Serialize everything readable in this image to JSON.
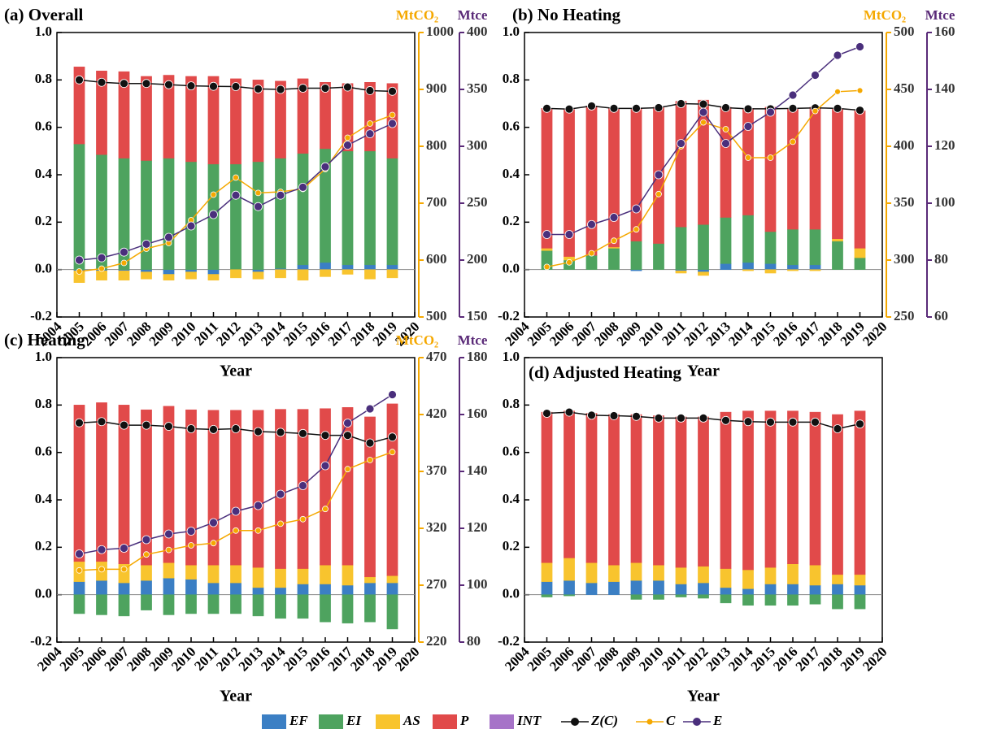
{
  "chart_data": [
    {
      "type": "bar",
      "title": "(a) Overall",
      "xlabel": "Year",
      "x": [
        2005,
        2006,
        2007,
        2008,
        2009,
        2010,
        2011,
        2012,
        2013,
        2014,
        2015,
        2016,
        2017,
        2018,
        2019
      ],
      "xlim": [
        2004,
        2020
      ],
      "xticks": [
        2004,
        2005,
        2006,
        2007,
        2008,
        2009,
        2010,
        2011,
        2012,
        2013,
        2014,
        2015,
        2016,
        2017,
        2018,
        2019,
        2020
      ],
      "ylim": [
        -0.2,
        1.0
      ],
      "yticks": [
        -0.2,
        {
          "value": 0,
          "label": "0.0"
        },
        0.2,
        0.4,
        0.6,
        0.8,
        {
          "value": 1,
          "label": "1.0"
        }
      ],
      "y2label": "MtCO₂",
      "y2lim": [
        500,
        1000
      ],
      "y2ticks": [
        500,
        600,
        700,
        800,
        900,
        1000
      ],
      "y3label": "Mtce",
      "y3lim": [
        150,
        400
      ],
      "y3ticks": [
        150,
        200,
        250,
        300,
        350,
        400
      ],
      "series": [
        {
          "name": "EF",
          "color": "#3b7fc4",
          "values": [
            -0.005,
            -0.005,
            -0.005,
            -0.01,
            -0.02,
            -0.01,
            -0.02,
            0,
            -0.01,
            0.005,
            0.02,
            0.03,
            0.02,
            0.02,
            0.02
          ]
        },
        {
          "name": "EI",
          "color": "#4ea35f",
          "values": [
            0.53,
            0.485,
            0.47,
            0.46,
            0.47,
            0.455,
            0.445,
            0.445,
            0.455,
            0.465,
            0.47,
            0.48,
            0.48,
            0.48,
            0.45
          ]
        },
        {
          "name": "AS",
          "color": "#f8c42e",
          "values": [
            -0.05,
            -0.04,
            -0.04,
            -0.03,
            -0.025,
            -0.03,
            -0.025,
            -0.035,
            -0.03,
            -0.035,
            -0.045,
            -0.03,
            -0.02,
            -0.04,
            -0.035
          ]
        },
        {
          "name": "P",
          "color": "#e14a4a",
          "values": [
            0.325,
            0.353,
            0.365,
            0.355,
            0.35,
            0.36,
            0.37,
            0.36,
            0.345,
            0.325,
            0.315,
            0.28,
            0.285,
            0.29,
            0.315
          ]
        },
        {
          "name": "INT",
          "color": "#a673c8",
          "values": [
            0,
            0,
            0,
            0,
            0,
            0,
            0,
            0,
            0,
            0,
            0,
            0,
            0,
            0,
            0
          ]
        },
        {
          "name": "Z(C)",
          "type": "line",
          "color": "#111111",
          "values": [
            0.8,
            0.79,
            0.785,
            0.785,
            0.78,
            0.775,
            0.773,
            0.772,
            0.762,
            0.76,
            0.765,
            0.765,
            0.77,
            0.755,
            0.752
          ]
        },
        {
          "name": "C",
          "type": "line",
          "axis": "y2",
          "color": "#f5a800",
          "values": [
            580,
            585,
            595,
            620,
            630,
            670,
            715,
            745,
            718,
            720,
            725,
            760,
            815,
            840,
            855
          ]
        },
        {
          "name": "E",
          "type": "line",
          "axis": "y3",
          "color": "#4a2f7c",
          "values": [
            200,
            202,
            207,
            214,
            220,
            230,
            240,
            257,
            247,
            257,
            264,
            282,
            301,
            311,
            320
          ]
        }
      ]
    },
    {
      "type": "bar",
      "title": "(b) No Heating",
      "xlabel": "Year",
      "x": [
        2005,
        2006,
        2007,
        2008,
        2009,
        2010,
        2011,
        2012,
        2013,
        2014,
        2015,
        2016,
        2017,
        2018,
        2019
      ],
      "xlim": [
        2004,
        2020
      ],
      "xticks": [
        2004,
        2005,
        2006,
        2007,
        2008,
        2009,
        2010,
        2011,
        2012,
        2013,
        2014,
        2015,
        2016,
        2017,
        2018,
        2019,
        2020
      ],
      "ylim": [
        -0.2,
        1.0
      ],
      "yticks": [
        -0.2,
        {
          "value": 0,
          "label": "0.0"
        },
        0.2,
        0.4,
        0.6,
        0.8,
        {
          "value": 1,
          "label": "1.0"
        }
      ],
      "y2label": "MtCO₂",
      "y2lim": [
        250,
        500
      ],
      "y2ticks": [
        250,
        300,
        350,
        400,
        450,
        500
      ],
      "y3label": "Mtce",
      "y3lim": [
        60,
        160
      ],
      "y3ticks": [
        60,
        80,
        100,
        120,
        140,
        160
      ],
      "series": [
        {
          "name": "EF",
          "color": "#3b7fc4",
          "values": [
            0,
            0,
            0,
            0,
            -0.005,
            0,
            -0.005,
            -0.01,
            0.025,
            0.03,
            0.025,
            0.02,
            0.02,
            0,
            0
          ]
        },
        {
          "name": "EI",
          "color": "#4ea35f",
          "values": [
            0.08,
            0.04,
            0.06,
            0.09,
            0.12,
            0.11,
            0.18,
            0.19,
            0.195,
            0.2,
            0.135,
            0.15,
            0.15,
            0.12,
            0.05
          ]
        },
        {
          "name": "AS",
          "color": "#f8c42e",
          "values": [
            0.01,
            0.015,
            0,
            0.005,
            0,
            0,
            -0.01,
            -0.015,
            0,
            -0.005,
            -0.015,
            -0.005,
            -0.005,
            0.01,
            0.04
          ]
        },
        {
          "name": "P",
          "color": "#e14a4a",
          "values": [
            0.59,
            0.62,
            0.63,
            0.585,
            0.56,
            0.575,
            0.53,
            0.525,
            0.465,
            0.45,
            0.525,
            0.51,
            0.515,
            0.55,
            0.58
          ]
        },
        {
          "name": "INT",
          "color": "#a673c8",
          "values": [
            0,
            0,
            0,
            0,
            0,
            0,
            0,
            0,
            0,
            0,
            0,
            0,
            0,
            0,
            0
          ]
        },
        {
          "name": "Z(C)",
          "type": "line",
          "color": "#111111",
          "values": [
            0.68,
            0.677,
            0.69,
            0.68,
            0.68,
            0.683,
            0.7,
            0.698,
            0.683,
            0.678,
            0.678,
            0.68,
            0.682,
            0.68,
            0.672
          ]
        },
        {
          "name": "C",
          "type": "line",
          "axis": "y2",
          "color": "#f5a800",
          "values": [
            294,
            298,
            306,
            317,
            327,
            358,
            400,
            421,
            415,
            390,
            390,
            404,
            431,
            448,
            449
          ]
        },
        {
          "name": "E",
          "type": "line",
          "axis": "y3",
          "color": "#4a2f7c",
          "values": [
            89,
            89,
            92.5,
            95,
            98,
            110,
            121,
            132,
            121,
            127,
            132,
            138,
            145,
            152,
            155
          ]
        }
      ]
    },
    {
      "type": "bar",
      "title": "(c) Heating",
      "xlabel": "Year",
      "x": [
        2005,
        2006,
        2007,
        2008,
        2009,
        2010,
        2011,
        2012,
        2013,
        2014,
        2015,
        2016,
        2017,
        2018,
        2019
      ],
      "xlim": [
        2004,
        2020
      ],
      "xticks": [
        2004,
        2005,
        2006,
        2007,
        2008,
        2009,
        2010,
        2011,
        2012,
        2013,
        2014,
        2015,
        2016,
        2017,
        2018,
        2019,
        2020
      ],
      "ylim": [
        -0.2,
        1.0
      ],
      "yticks": [
        -0.2,
        {
          "value": 0,
          "label": "0.0"
        },
        0.2,
        0.4,
        0.6,
        0.8,
        {
          "value": 1,
          "label": "1.0"
        }
      ],
      "y2label": "MtCO₂",
      "y2lim": [
        220,
        470
      ],
      "y2ticks": [
        220,
        270,
        320,
        370,
        420,
        470
      ],
      "y3label": "Mtce",
      "y3lim": [
        80,
        180
      ],
      "y3ticks": [
        80,
        100,
        120,
        140,
        160,
        180
      ],
      "series": [
        {
          "name": "EF",
          "color": "#3b7fc4",
          "values": [
            0.055,
            0.06,
            0.05,
            0.06,
            0.07,
            0.065,
            0.05,
            0.05,
            0.03,
            0.03,
            0.045,
            0.045,
            0.04,
            0.05,
            0.05
          ]
        },
        {
          "name": "EI",
          "color": "#4ea35f",
          "values": [
            -0.08,
            -0.085,
            -0.09,
            -0.065,
            -0.085,
            -0.08,
            -0.08,
            -0.08,
            -0.09,
            -0.1,
            -0.1,
            -0.115,
            -0.12,
            -0.115,
            -0.145
          ]
        },
        {
          "name": "AS",
          "color": "#f8c42e",
          "values": [
            0.085,
            0.08,
            0.08,
            0.065,
            0.065,
            0.06,
            0.075,
            0.075,
            0.085,
            0.08,
            0.065,
            0.08,
            0.085,
            0.025,
            0.03
          ]
        },
        {
          "name": "P",
          "color": "#e14a4a",
          "values": [
            0.66,
            0.67,
            0.67,
            0.655,
            0.66,
            0.655,
            0.653,
            0.653,
            0.663,
            0.672,
            0.672,
            0.66,
            0.665,
            0.675,
            0.725
          ]
        },
        {
          "name": "INT",
          "color": "#a673c8",
          "values": [
            0,
            0,
            0,
            0,
            0,
            0,
            0,
            0,
            0,
            0,
            0,
            0,
            0,
            0,
            0
          ]
        },
        {
          "name": "Z(C)",
          "type": "line",
          "color": "#111111",
          "values": [
            0.725,
            0.73,
            0.715,
            0.715,
            0.71,
            0.7,
            0.697,
            0.7,
            0.688,
            0.685,
            0.68,
            0.672,
            0.672,
            0.64,
            0.665
          ]
        },
        {
          "name": "C",
          "type": "line",
          "axis": "y2",
          "color": "#f5a800",
          "values": [
            283,
            284,
            284,
            297,
            301,
            305,
            307,
            318,
            318,
            324,
            328,
            337,
            372,
            380,
            387
          ]
        },
        {
          "name": "E",
          "type": "line",
          "axis": "y3",
          "color": "#4a2f7c",
          "values": [
            111,
            112.5,
            113,
            116,
            118,
            119,
            122,
            126,
            128,
            132,
            135,
            142,
            157,
            162,
            167
          ]
        }
      ]
    },
    {
      "type": "bar",
      "title": "(d) Adjusted Heating",
      "xlabel": "Year",
      "x": [
        2005,
        2006,
        2007,
        2008,
        2009,
        2010,
        2011,
        2012,
        2013,
        2014,
        2015,
        2016,
        2017,
        2018,
        2019
      ],
      "xlim": [
        2004,
        2020
      ],
      "xticks": [
        2004,
        2005,
        2006,
        2007,
        2008,
        2009,
        2010,
        2011,
        2012,
        2013,
        2014,
        2015,
        2016,
        2017,
        2018,
        2019,
        2020
      ],
      "ylim": [
        -0.2,
        1.0
      ],
      "yticks": [
        -0.2,
        {
          "value": 0,
          "label": "0.0"
        },
        0.2,
        0.4,
        0.6,
        0.8,
        {
          "value": 1,
          "label": "1.0"
        }
      ],
      "series": [
        {
          "name": "EF",
          "color": "#3b7fc4",
          "values": [
            0.055,
            0.06,
            0.05,
            0.055,
            0.06,
            0.06,
            0.045,
            0.05,
            0.03,
            0.025,
            0.045,
            0.045,
            0.04,
            0.045,
            0.04
          ]
        },
        {
          "name": "EI",
          "color": "#4ea35f",
          "values": [
            -0.01,
            -0.005,
            0,
            0,
            -0.02,
            -0.02,
            -0.01,
            -0.015,
            -0.035,
            -0.045,
            -0.045,
            -0.045,
            -0.04,
            -0.06,
            -0.06
          ]
        },
        {
          "name": "AS",
          "color": "#f8c42e",
          "values": [
            0.08,
            0.095,
            0.085,
            0.07,
            0.075,
            0.065,
            0.07,
            0.07,
            0.08,
            0.08,
            0.07,
            0.085,
            0.085,
            0.04,
            0.045
          ]
        },
        {
          "name": "P",
          "color": "#e14a4a",
          "values": [
            0.635,
            0.62,
            0.63,
            0.635,
            0.625,
            0.63,
            0.635,
            0.63,
            0.66,
            0.67,
            0.66,
            0.645,
            0.645,
            0.675,
            0.69
          ]
        },
        {
          "name": "INT",
          "color": "#a673c8",
          "values": [
            0,
            0,
            0,
            0,
            0,
            0,
            0,
            0,
            0,
            0,
            0,
            0,
            0,
            0,
            0
          ]
        },
        {
          "name": "Z(C)",
          "type": "line",
          "color": "#111111",
          "values": [
            0.765,
            0.77,
            0.757,
            0.755,
            0.752,
            0.745,
            0.745,
            0.745,
            0.735,
            0.73,
            0.728,
            0.728,
            0.728,
            0.7,
            0.72
          ]
        }
      ]
    }
  ]
}
